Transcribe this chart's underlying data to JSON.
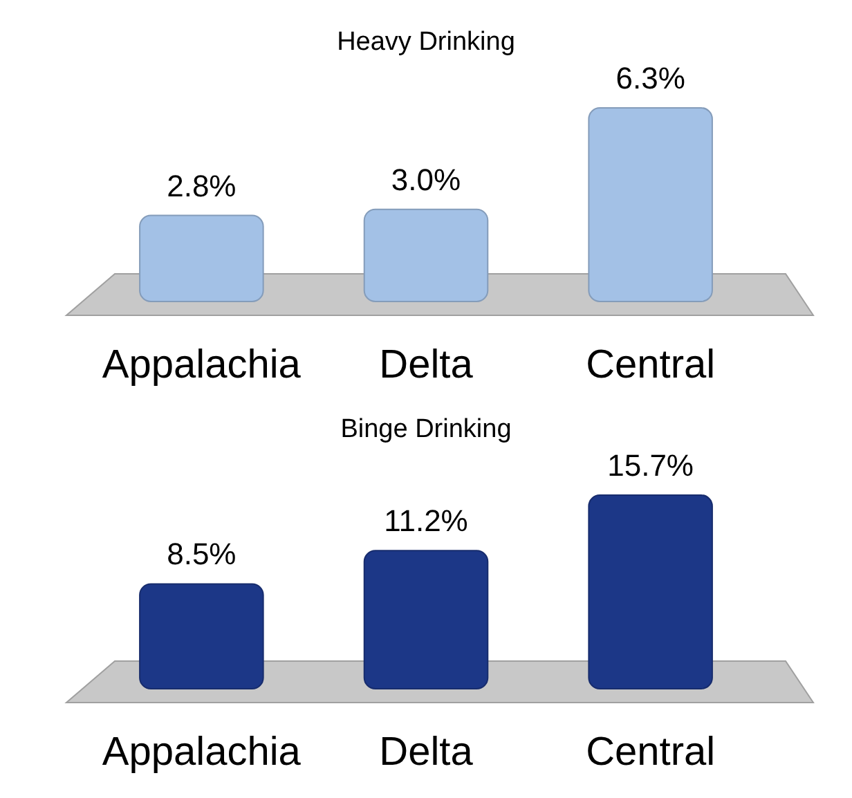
{
  "chart_data": [
    {
      "type": "bar",
      "title": "Heavy Drinking",
      "categories": [
        "Appalachia",
        "Delta",
        "Central"
      ],
      "values": [
        2.8,
        3.0,
        6.3
      ],
      "color": "#a3c1e6",
      "data_labels": true,
      "value_labels": [
        "2.8%",
        "3.0%",
        "6.3%"
      ]
    },
    {
      "type": "bar",
      "title": "Binge Drinking",
      "categories": [
        "Appalachia",
        "Delta",
        "Central"
      ],
      "values": [
        8.5,
        11.2,
        15.7
      ],
      "color": "#1c3787",
      "data_labels": true,
      "value_labels": [
        "8.5%",
        "11.2%",
        "15.7%"
      ]
    }
  ]
}
